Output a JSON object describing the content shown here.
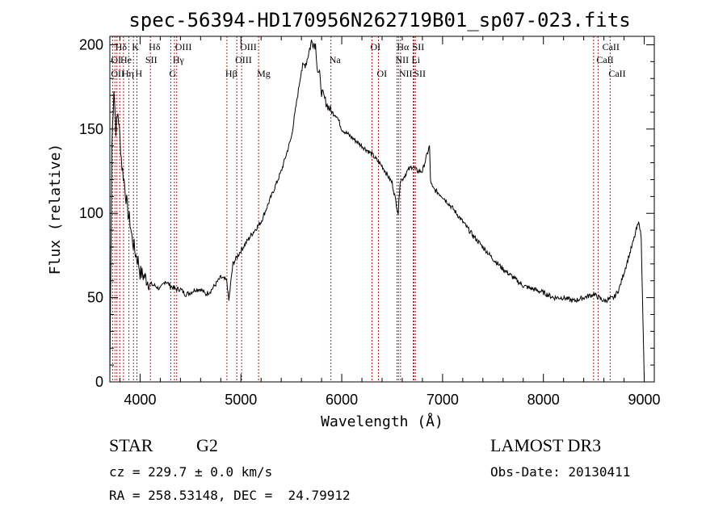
{
  "chart_data": {
    "type": "line",
    "title": "spec-56394-HD170956N262719B01_sp07-023.fits",
    "xlabel": "Wavelength (Å)",
    "ylabel": "Flux (relative)",
    "xlim": [
      3700,
      9100
    ],
    "ylim": [
      0,
      205
    ],
    "xticks": [
      4000,
      5000,
      6000,
      7000,
      8000,
      9000
    ],
    "yticks": [
      0,
      50,
      100,
      150,
      200
    ],
    "series": [
      {
        "x": [
          3700,
          3720,
          3740,
          3760,
          3780,
          3800,
          3820,
          3840,
          3860,
          3880,
          3900,
          3920,
          3940,
          3960,
          3980,
          4000,
          4050,
          4100,
          4150,
          4200,
          4250,
          4300,
          4350,
          4400,
          4450,
          4500,
          4550,
          4600,
          4650,
          4700,
          4750,
          4800,
          4860,
          4880,
          4920,
          5000,
          5100,
          5200,
          5300,
          5400,
          5500,
          5600,
          5650,
          5700,
          5740,
          5760,
          5780,
          5800,
          5850,
          5900,
          5950,
          6000,
          6100,
          6200,
          6300,
          6400,
          6500,
          6560,
          6580,
          6600,
          6650,
          6700,
          6750,
          6800,
          6870,
          6880,
          6900,
          7000,
          7100,
          7200,
          7300,
          7400,
          7500,
          7600,
          7700,
          7800,
          7900,
          8000,
          8100,
          8200,
          8300,
          8400,
          8500,
          8600,
          8700,
          8750,
          8800,
          8850,
          8900,
          8920,
          8950,
          8970,
          9000
        ],
        "y": [
          2,
          140,
          175,
          150,
          160,
          145,
          128,
          120,
          110,
          100,
          95,
          85,
          80,
          75,
          72,
          65,
          62,
          58,
          57,
          55,
          60,
          57,
          55,
          55,
          52,
          53,
          55,
          55,
          52,
          54,
          58,
          62,
          60,
          48,
          70,
          78,
          87,
          95,
          110,
          125,
          145,
          185,
          190,
          202,
          200,
          185,
          182,
          172,
          165,
          160,
          158,
          150,
          145,
          140,
          135,
          128,
          118,
          100,
          120,
          120,
          125,
          128,
          125,
          125,
          140,
          120,
          115,
          110,
          103,
          95,
          87,
          80,
          73,
          67,
          62,
          57,
          55,
          53,
          50,
          50,
          48,
          50,
          52,
          48,
          50,
          55,
          65,
          75,
          85,
          90,
          95,
          85,
          2
        ]
      }
    ],
    "line_labels": [
      {
        "text": "Hδ",
        "x": 3770,
        "row": 1
      },
      {
        "text": "K",
        "x": 3934,
        "row": 1
      },
      {
        "text": "Hδ",
        "x": 4102,
        "row": 1
      },
      {
        "text": "OIII",
        "x": 4363,
        "row": 1
      },
      {
        "text": "OIII",
        "x": 5007,
        "row": 1
      },
      {
        "text": "OI",
        "x": 6300,
        "row": 1
      },
      {
        "text": "Hα",
        "x": 6563,
        "row": 1
      },
      {
        "text": "SII",
        "x": 6717,
        "row": 1
      },
      {
        "text": "CaII",
        "x": 8600,
        "row": 1
      },
      {
        "text": "OI",
        "x": 3727,
        "row": 2
      },
      {
        "text": "He",
        "x": 3820,
        "row": 2
      },
      {
        "text": "SII",
        "x": 4068,
        "row": 2
      },
      {
        "text": "Hγ",
        "x": 4340,
        "row": 2
      },
      {
        "text": "OIII",
        "x": 4959,
        "row": 2
      },
      {
        "text": "Na",
        "x": 5893,
        "row": 2
      },
      {
        "text": "NII",
        "x": 6548,
        "row": 2
      },
      {
        "text": "Li",
        "x": 6708,
        "row": 2
      },
      {
        "text": "CaII",
        "x": 8542,
        "row": 2
      },
      {
        "text": "OII",
        "x": 3727,
        "row": 3
      },
      {
        "text": "Hη",
        "x": 3835,
        "row": 3
      },
      {
        "text": "H",
        "x": 3968,
        "row": 3
      },
      {
        "text": "G",
        "x": 4304,
        "row": 3
      },
      {
        "text": "Hβ",
        "x": 4861,
        "row": 3
      },
      {
        "text": "Mg",
        "x": 5175,
        "row": 3
      },
      {
        "text": "OI",
        "x": 6364,
        "row": 3
      },
      {
        "text": "NII",
        "x": 6583,
        "row": 3
      },
      {
        "text": "SII",
        "x": 6731,
        "row": 3
      },
      {
        "text": "CaII",
        "x": 8662,
        "row": 3
      }
    ],
    "line_marks": [
      3727,
      3750,
      3770,
      3798,
      3835,
      3889,
      3934,
      3968,
      4102,
      4304,
      4340,
      4363,
      4861,
      4959,
      5007,
      5175,
      5893,
      6300,
      6364,
      6548,
      6563,
      6583,
      6708,
      6717,
      6731,
      8498,
      8542,
      8662
    ],
    "line_mark_color": "#b22222"
  },
  "info": {
    "object_class": "STAR",
    "subclass": "G2",
    "survey": "LAMOST DR3",
    "redshift": "cz = 229.7 ± 0.0 km/s",
    "obs_date": "Obs-Date: 20130411",
    "coords": "RA = 258.53148, DEC =  24.79912"
  }
}
